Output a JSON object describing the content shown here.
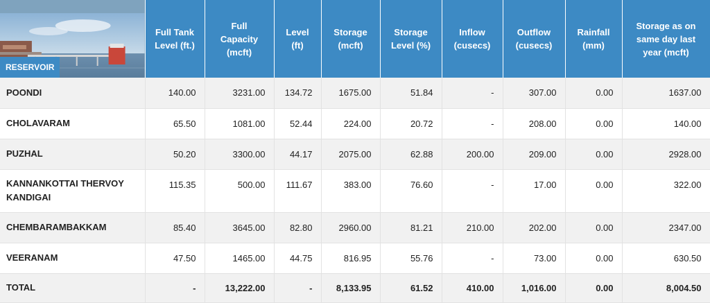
{
  "header": {
    "reservoir_label": "RESERVOIR",
    "columns": [
      "Full Tank\nLevel (ft.)",
      "Full\nCapacity\n(mcft)",
      "Level\n(ft)",
      "Storage\n(mcft)",
      "Storage\nLevel (%)",
      "Inflow\n(cusecs)",
      "Outflow\n(cusecs)",
      "Rainfall\n(mm)",
      "Storage as on\nsame day last\nyear (mcft)"
    ]
  },
  "rows": [
    {
      "name": "POONDI",
      "values": [
        "140.00",
        "3231.00",
        "134.72",
        "1675.00",
        "51.84",
        "-",
        "307.00",
        "0.00",
        "1637.00"
      ]
    },
    {
      "name": "CHOLAVARAM",
      "values": [
        "65.50",
        "1081.00",
        "52.44",
        "224.00",
        "20.72",
        "-",
        "208.00",
        "0.00",
        "140.00"
      ]
    },
    {
      "name": "PUZHAL",
      "values": [
        "50.20",
        "3300.00",
        "44.17",
        "2075.00",
        "62.88",
        "200.00",
        "209.00",
        "0.00",
        "2928.00"
      ]
    },
    {
      "name": "KANNANKOTTAI THERVOY\nKANDIGAI",
      "values": [
        "115.35",
        "500.00",
        "111.67",
        "383.00",
        "76.60",
        "-",
        "17.00",
        "0.00",
        "322.00"
      ]
    },
    {
      "name": "CHEMBARAMBAKKAM",
      "values": [
        "85.40",
        "3645.00",
        "82.80",
        "2960.00",
        "81.21",
        "210.00",
        "202.00",
        "0.00",
        "2347.00"
      ]
    },
    {
      "name": "VEERANAM",
      "values": [
        "47.50",
        "1465.00",
        "44.75",
        "816.95",
        "55.76",
        "-",
        "73.00",
        "0.00",
        "630.50"
      ]
    }
  ],
  "total": {
    "name": "TOTAL",
    "values": [
      "-",
      "13,222.00",
      "-",
      "8,133.95",
      "61.52",
      "410.00",
      "1,016.00",
      "0.00",
      "8,004.50"
    ]
  },
  "colors": {
    "header_bg": "#3d8ac4",
    "row_alt_bg": "#f1f1f1"
  },
  "icons": {
    "header_image": "reservoir-photo-icon"
  }
}
